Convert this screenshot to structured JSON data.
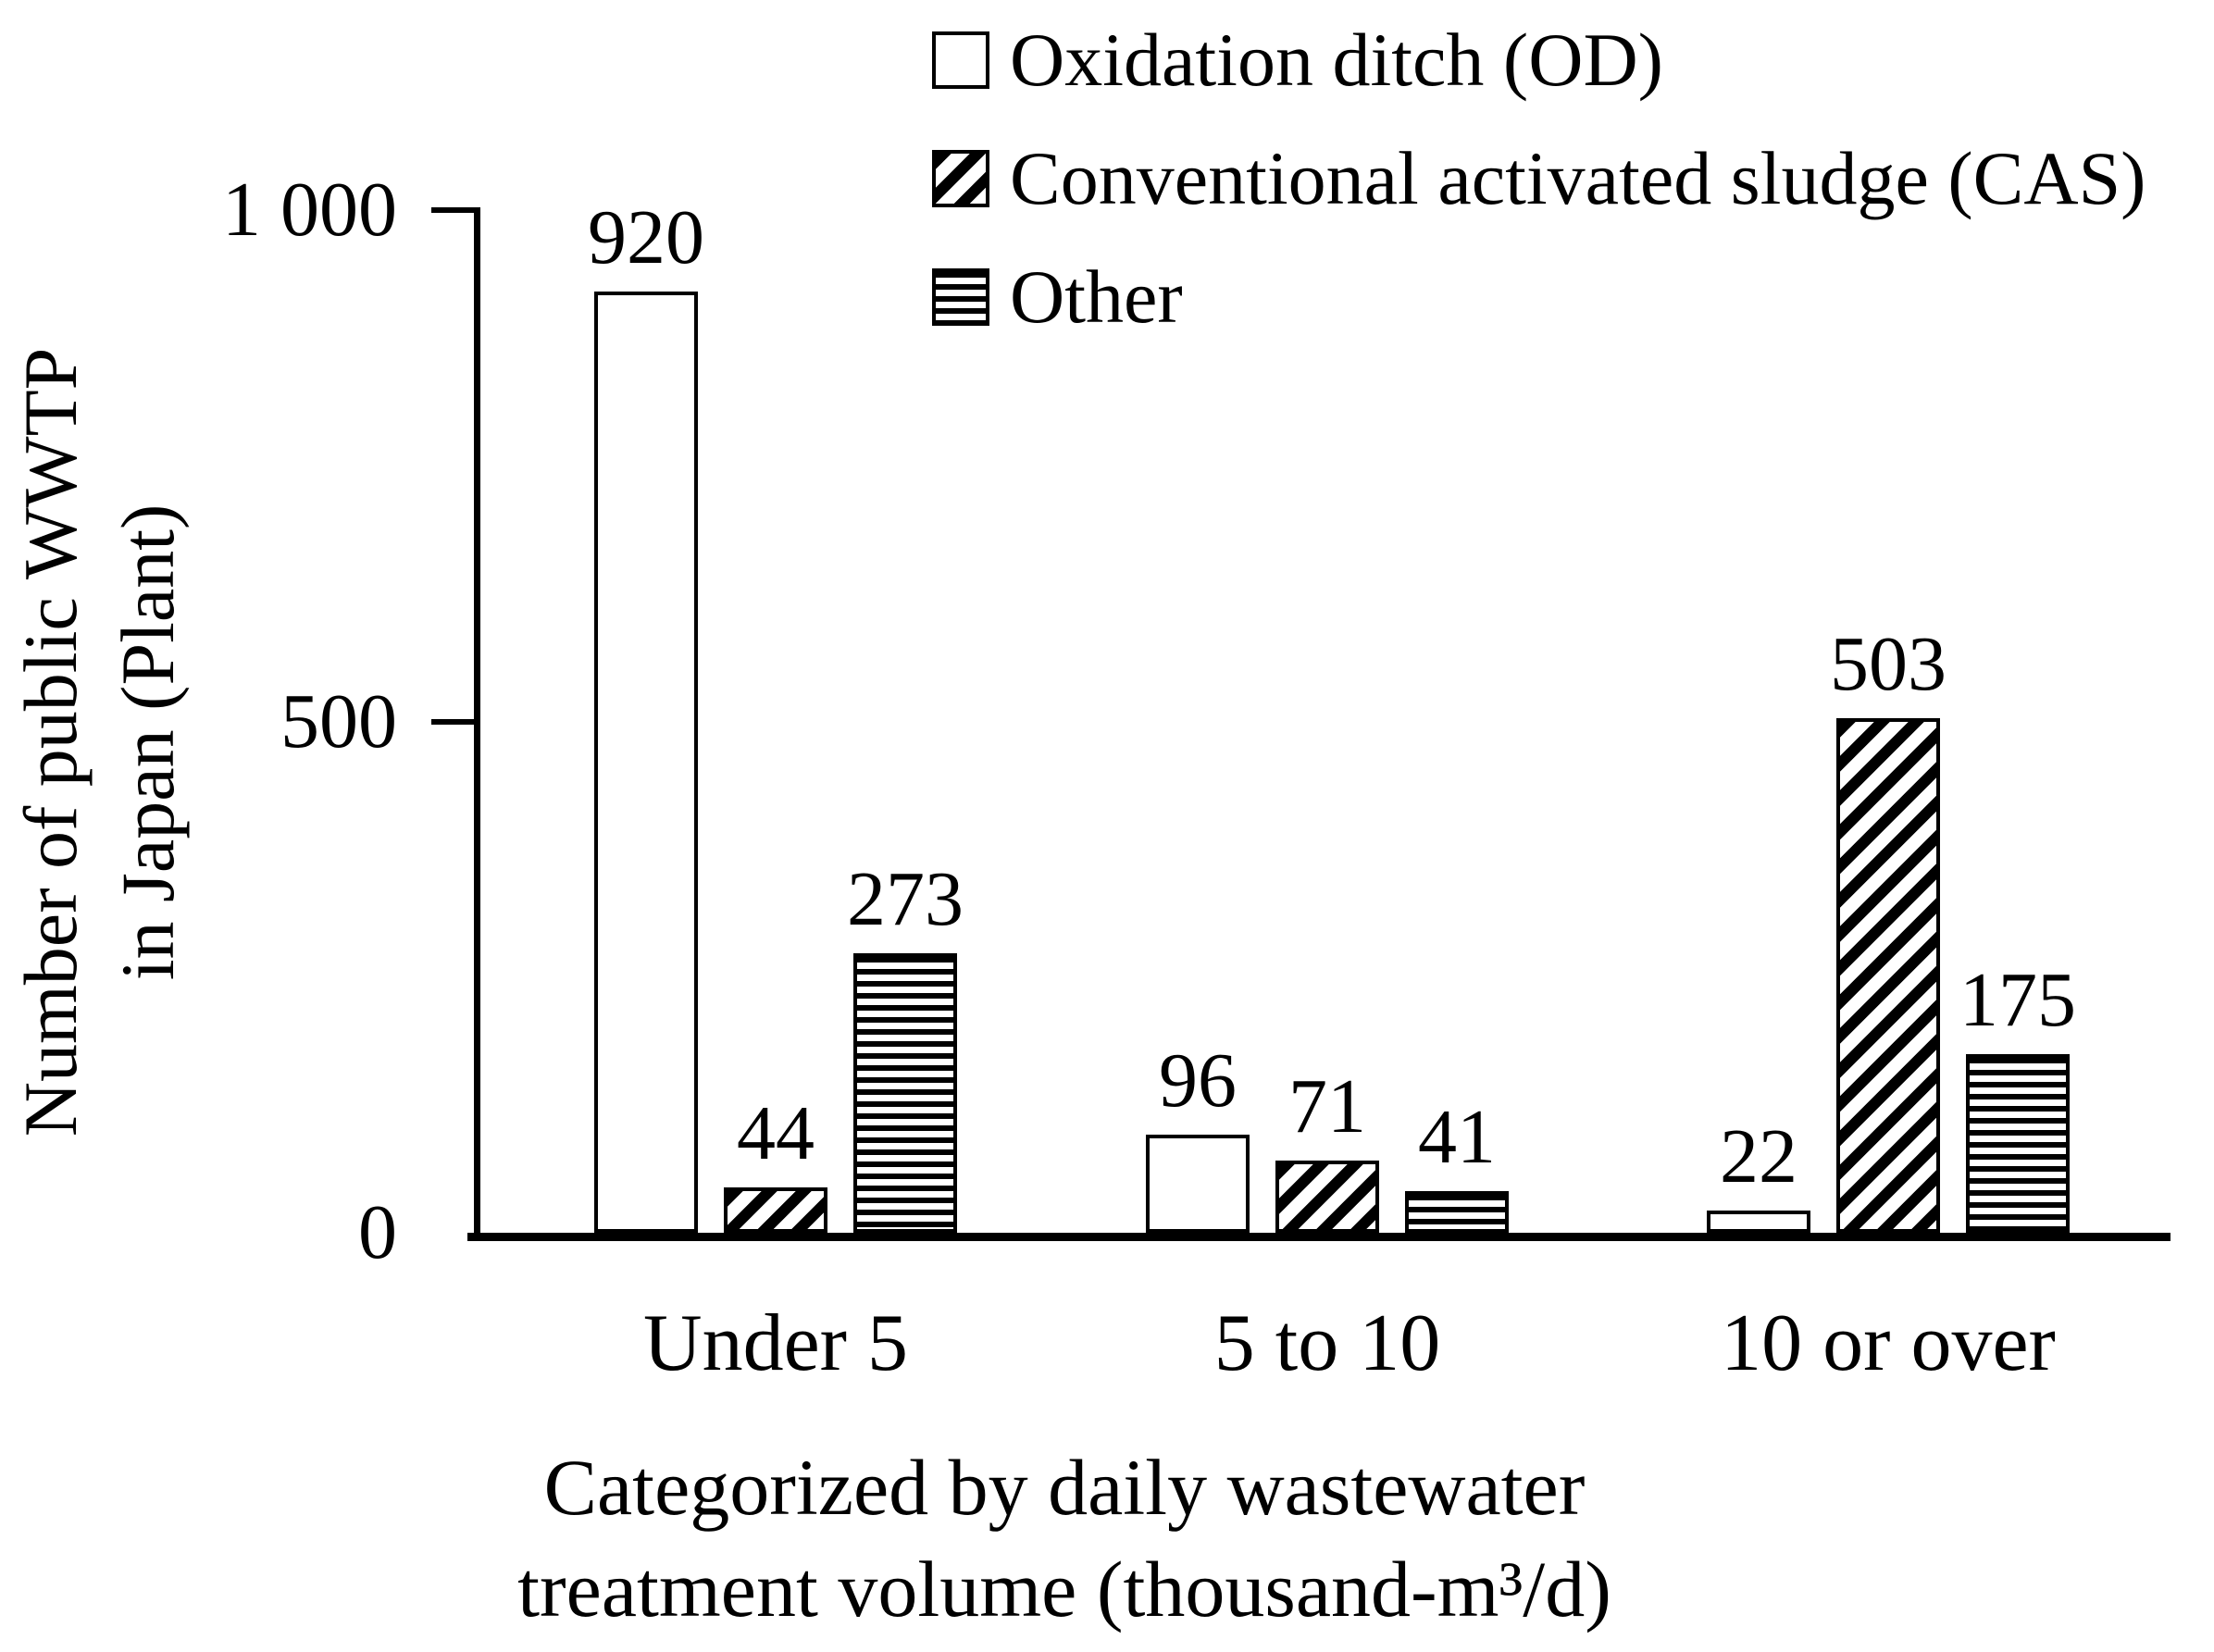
{
  "figure": {
    "background": "#ffffff",
    "foreground": "#000000"
  },
  "chart_data": {
    "type": "bar",
    "title": "",
    "categories": [
      "Under 5",
      "5 to 10",
      "10 or over"
    ],
    "series": [
      {
        "name": "Oxidation ditch (OD)",
        "pattern": "plain",
        "values": [
          920,
          96,
          22
        ]
      },
      {
        "name": "Conventional activated sludge (CAS)",
        "pattern": "diagonal-hatch",
        "values": [
          44,
          71,
          503
        ]
      },
      {
        "name": "Other",
        "pattern": "horizontal-stripes",
        "values": [
          273,
          41,
          175
        ]
      }
    ],
    "y_axis": {
      "title_line1": "Number of public WWTP",
      "title_line2": "in Japan (Plant)",
      "ticks": [
        {
          "value": 0,
          "label": "0"
        },
        {
          "value": 500,
          "label": "500"
        },
        {
          "value": 1000,
          "label": "1 000"
        }
      ],
      "range": [
        0,
        1000
      ]
    },
    "x_axis": {
      "title_line1": "Categorized by daily wastewater",
      "title_line2": "treatment volume (thousand-m³/d)"
    },
    "legend_position": "top",
    "grid": false
  }
}
